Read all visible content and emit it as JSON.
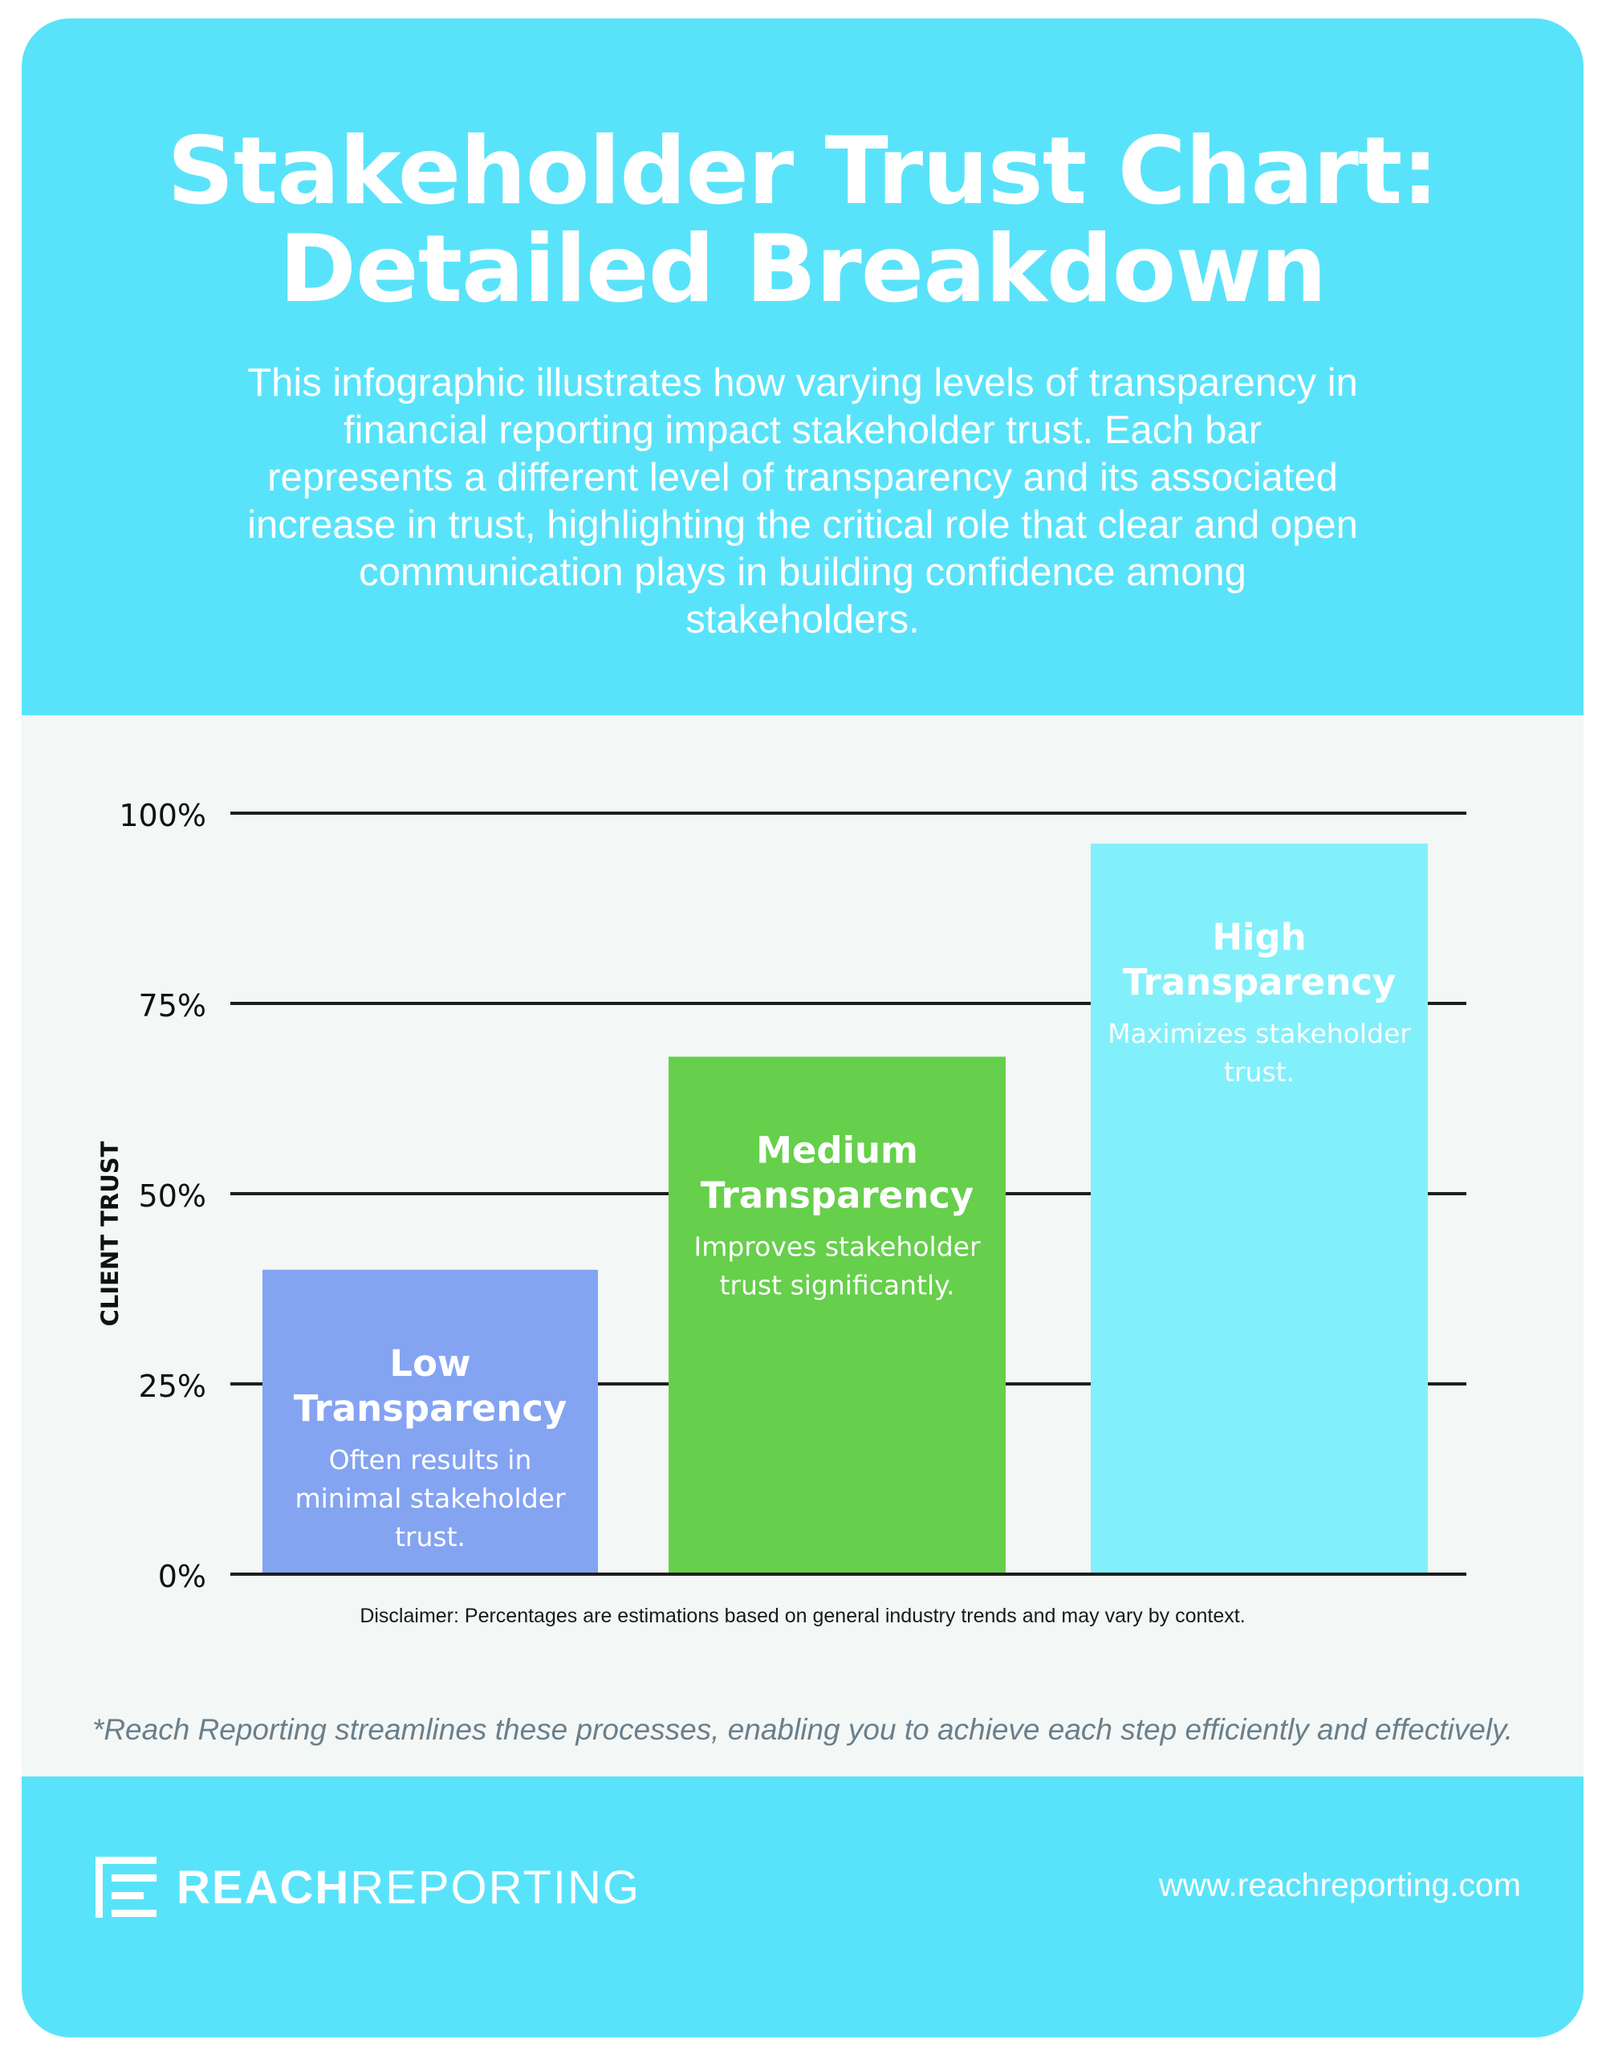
{
  "header": {
    "title_line1": "Stakeholder Trust Chart:",
    "title_line2": "Detailed Breakdown",
    "description": "This infographic illustrates how varying levels of transparency in financial reporting impact stakeholder trust. Each bar represents a different level of transparency and its associated increase in trust, highlighting the critical role that clear and open communication plays in building confidence among stakeholders."
  },
  "chart_data": {
    "type": "bar",
    "title": "",
    "xlabel": "",
    "ylabel": "CLIENT TRUST",
    "ylim": [
      0,
      100
    ],
    "yticks": [
      0,
      25,
      50,
      75,
      100
    ],
    "ytick_labels": [
      "0%",
      "25%",
      "50%",
      "75%",
      "100%"
    ],
    "grid": true,
    "categories": [
      "Low Transparency",
      "Medium Transparency",
      "High Transparency"
    ],
    "values": [
      40,
      68,
      96
    ],
    "bars": [
      {
        "name_line1": "Low",
        "name_line2": "Transparency",
        "desc_lines": [
          "Often results in",
          "minimal stakeholder",
          "trust."
        ],
        "color": "#84a4f2"
      },
      {
        "name_line1": "Medium",
        "name_line2": "Transparency",
        "desc_lines": [
          "Improves stakeholder",
          "trust significantly."
        ],
        "color": "#66cf4b"
      },
      {
        "name_line1": "High",
        "name_line2": "Transparency",
        "desc_lines": [
          "Maximizes stakeholder",
          "trust."
        ],
        "color": "#82f0fb"
      }
    ]
  },
  "disclaimer": "Disclaimer: Percentages are estimations based on general industry trends and may vary by context.",
  "footnote": "*Reach Reporting streamlines these processes, enabling you to achieve each step efficiently and effectively.",
  "footer": {
    "logo_bold": "REACH",
    "logo_light": "REPORTING",
    "url": "www.reachreporting.com"
  },
  "colors": {
    "header_bg": "#59e3fa",
    "chart_bg": "#f3f7f6",
    "gridline": "#1e1e1e"
  }
}
